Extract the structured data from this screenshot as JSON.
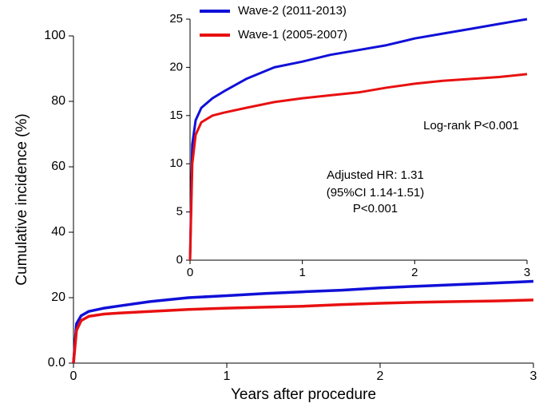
{
  "chart_data": [
    {
      "type": "line",
      "x_label": "Years after procedure",
      "y_label": "Cumulative incidence (%)",
      "x": [
        0,
        0.02,
        0.05,
        0.1,
        0.2,
        0.3,
        0.5,
        0.75,
        1,
        1.25,
        1.5,
        1.75,
        2,
        2.25,
        2.5,
        2.75,
        3
      ],
      "series": [
        {
          "color": "#1010d8",
          "values": [
            0,
            12,
            14.5,
            15.8,
            16.8,
            17.5,
            18.8,
            20,
            20.6,
            21.3,
            21.8,
            22.3,
            23,
            23.5,
            24,
            24.5,
            25
          ]
        },
        {
          "color": "#e81010",
          "values": [
            0,
            10,
            13,
            14.3,
            15,
            15.3,
            15.8,
            16.4,
            16.8,
            17.1,
            17.4,
            17.9,
            18.3,
            18.6,
            18.8,
            19,
            19.3
          ]
        }
      ],
      "xlim": [
        0,
        3
      ],
      "xticks": [
        0,
        1,
        2,
        3
      ],
      "ylim": [
        0,
        100
      ],
      "yticks": [
        {
          "value": 0,
          "label": "0.0"
        },
        20,
        40,
        60,
        80,
        100
      ]
    },
    {
      "type": "line",
      "x": [
        0,
        0.02,
        0.05,
        0.1,
        0.2,
        0.3,
        0.5,
        0.75,
        1,
        1.25,
        1.5,
        1.75,
        2,
        2.25,
        2.5,
        2.75,
        3
      ],
      "series": [
        {
          "name": "Wave-2 (2011-2013)",
          "color": "#1010d8",
          "values": [
            0,
            12,
            14.5,
            15.8,
            16.8,
            17.5,
            18.8,
            20,
            20.6,
            21.3,
            21.8,
            22.3,
            23,
            23.5,
            24,
            24.5,
            25
          ]
        },
        {
          "name": "Wave-1 (2005-2007)",
          "color": "#e81010",
          "values": [
            0,
            10,
            13,
            14.3,
            15,
            15.3,
            15.8,
            16.4,
            16.8,
            17.1,
            17.4,
            17.9,
            18.3,
            18.6,
            18.8,
            19,
            19.3
          ]
        }
      ],
      "xlim": [
        0,
        3
      ],
      "xticks": [
        0,
        1,
        2,
        3
      ],
      "ylim": [
        0,
        25
      ],
      "yticks": [
        0,
        5,
        10,
        15,
        20,
        25
      ],
      "annotations": [
        "Log-rank P<0.001",
        "Adjusted HR: 1.31",
        "(95%CI 1.14-1.51)",
        "P<0.001"
      ],
      "legend": "top-left"
    }
  ]
}
